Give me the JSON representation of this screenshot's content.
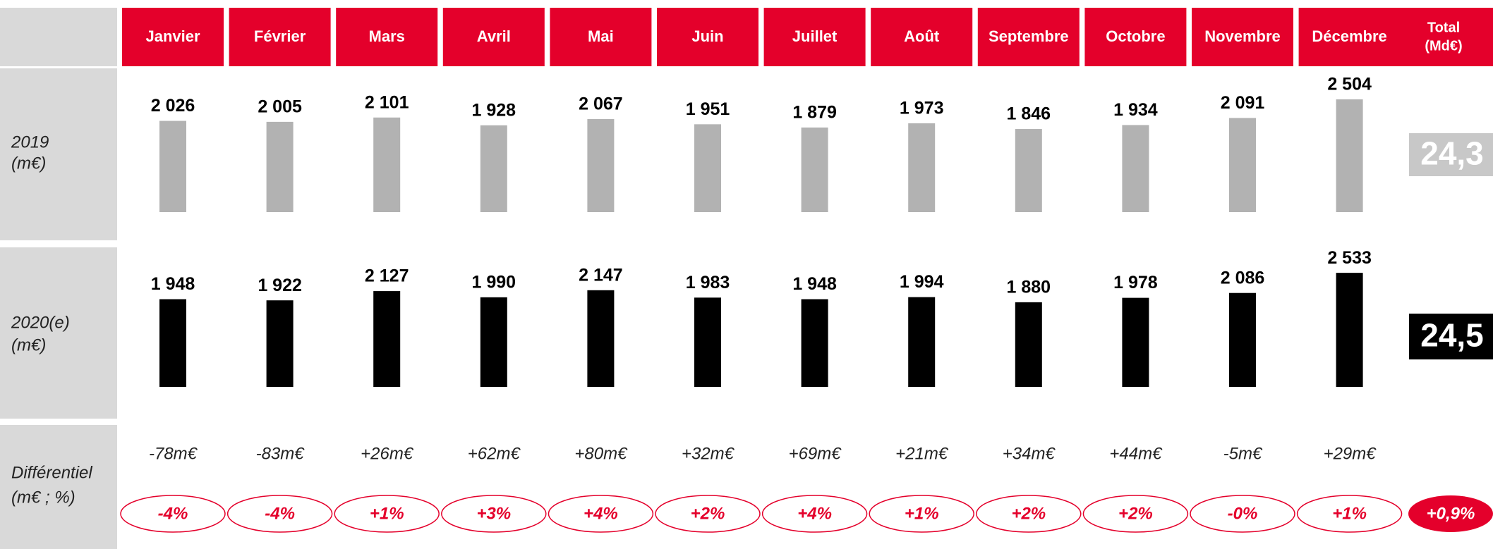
{
  "chart_data": {
    "type": "bar",
    "categories": [
      "Janvier",
      "Février",
      "Mars",
      "Avril",
      "Mai",
      "Juin",
      "Juillet",
      "Août",
      "Septembre",
      "Octobre",
      "Novembre",
      "Décembre"
    ],
    "total_header": [
      "Total",
      "(Md€)"
    ],
    "header_color": "#e4002b",
    "series": [
      {
        "name": [
          "2019",
          "(m€)"
        ],
        "color": "#b2b2b2",
        "values": [
          2026,
          2005,
          2101,
          1928,
          2067,
          1951,
          1879,
          1973,
          1846,
          1934,
          2091,
          2504
        ],
        "value_labels": [
          "2 026",
          "2 005",
          "2 101",
          "1 928",
          "2 067",
          "1 951",
          "1 879",
          "1 973",
          "1 846",
          "1 934",
          "2 091",
          "2 504"
        ],
        "total": 24.3,
        "total_label": "24,3",
        "total_color": "#c8c8c8"
      },
      {
        "name": [
          "2020(e)",
          "(m€)"
        ],
        "color": "#000000",
        "values": [
          1948,
          1922,
          2127,
          1990,
          2147,
          1983,
          1948,
          1994,
          1880,
          1978,
          2086,
          2533
        ],
        "value_labels": [
          "1 948",
          "1 922",
          "2 127",
          "1 990",
          "2 147",
          "1 983",
          "1 948",
          "1 994",
          "1 880",
          "1 978",
          "2 086",
          "2 533"
        ],
        "total": 24.5,
        "total_label": "24,5",
        "total_color": "#000000"
      }
    ],
    "differential": {
      "name": [
        "Différentiel",
        "(m€ ; %)"
      ],
      "values": [
        -78,
        -83,
        26,
        62,
        80,
        32,
        69,
        21,
        34,
        44,
        -5,
        29
      ],
      "value_labels": [
        "-78m€",
        "-83m€",
        "+26m€",
        "+62m€",
        "+80m€",
        "+32m€",
        "+69m€",
        "+21m€",
        "+34m€",
        "+44m€",
        "-5m€",
        "+29m€"
      ],
      "percent_values": [
        -4,
        -4,
        1,
        3,
        4,
        2,
        4,
        1,
        2,
        2,
        0,
        1
      ],
      "percent_labels": [
        "-4%",
        "-4%",
        "+1%",
        "+3%",
        "+4%",
        "+2%",
        "+4%",
        "+1%",
        "+2%",
        "+2%",
        "-0%",
        "+1%"
      ],
      "total_percent": 0.9,
      "total_percent_label": "+0,9%"
    }
  }
}
